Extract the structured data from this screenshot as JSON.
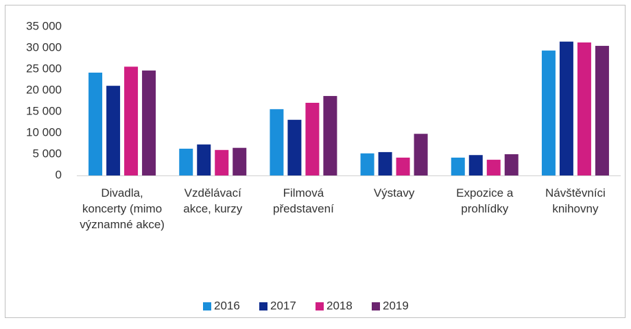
{
  "chart_data": {
    "type": "bar",
    "categories": [
      "Divadla, koncerty (mimo významné akce)",
      "Vzdělávací akce, kurzy",
      "Filmová představení",
      "Výstavy",
      "Expozice a prohlídky",
      "Návštěvníci knihovny"
    ],
    "series": [
      {
        "name": "2016",
        "color": "#1a8fdb",
        "values": [
          24200,
          6300,
          15600,
          5200,
          4200,
          29400
        ]
      },
      {
        "name": "2017",
        "color": "#0d2b8e",
        "values": [
          21100,
          7300,
          13100,
          5500,
          4800,
          31500
        ]
      },
      {
        "name": "2018",
        "color": "#d01e82",
        "values": [
          25600,
          6000,
          17100,
          4200,
          3700,
          31300
        ]
      },
      {
        "name": "2019",
        "color": "#6b246f",
        "values": [
          24700,
          6500,
          18700,
          9800,
          5000,
          30500
        ]
      }
    ],
    "ylim": [
      0,
      35000
    ],
    "yticks": [
      0,
      {
        "value": 5000,
        "label": "5 000"
      },
      {
        "value": 10000,
        "label": "10 000"
      },
      {
        "value": 15000,
        "label": "15 000"
      },
      {
        "value": 20000,
        "label": "20 000"
      },
      {
        "value": 25000,
        "label": "25 000"
      },
      {
        "value": 30000,
        "label": "30 000"
      },
      {
        "value": 35000,
        "label": "35 000"
      }
    ],
    "grid": false,
    "legend": "bottom"
  }
}
